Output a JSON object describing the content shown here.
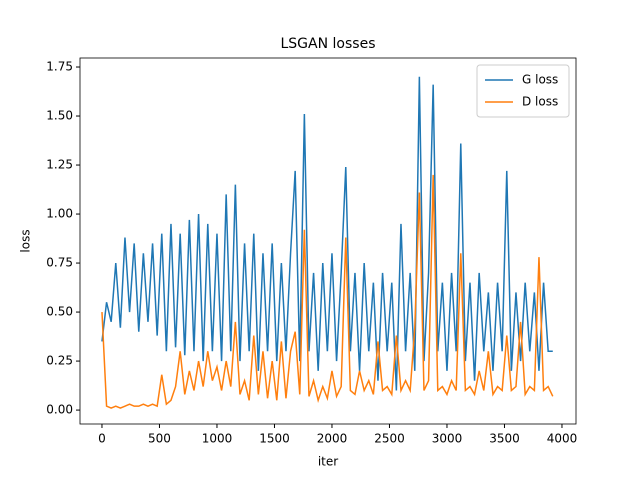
{
  "chart_data": {
    "type": "line",
    "title": "LSGAN losses",
    "x_label": "iter",
    "y_label": "loss",
    "x": [
      0,
      40,
      80,
      120,
      160,
      200,
      240,
      280,
      320,
      360,
      400,
      440,
      480,
      520,
      560,
      600,
      640,
      680,
      720,
      760,
      800,
      840,
      880,
      920,
      960,
      1000,
      1040,
      1080,
      1120,
      1160,
      1200,
      1240,
      1280,
      1320,
      1360,
      1400,
      1440,
      1480,
      1520,
      1560,
      1600,
      1640,
      1680,
      1720,
      1760,
      1800,
      1840,
      1880,
      1920,
      1960,
      2000,
      2040,
      2080,
      2120,
      2160,
      2200,
      2240,
      2280,
      2320,
      2360,
      2400,
      2440,
      2480,
      2520,
      2560,
      2600,
      2640,
      2680,
      2720,
      2760,
      2800,
      2840,
      2880,
      2920,
      2960,
      3000,
      3040,
      3080,
      3120,
      3160,
      3200,
      3240,
      3280,
      3320,
      3360,
      3400,
      3440,
      3480,
      3520,
      3560,
      3600,
      3640,
      3680,
      3720,
      3760,
      3800,
      3840,
      3880,
      3920
    ],
    "series": [
      {
        "name": "G loss",
        "color": "#1f77b4",
        "values": [
          0.35,
          0.55,
          0.45,
          0.75,
          0.42,
          0.88,
          0.5,
          0.85,
          0.4,
          0.8,
          0.45,
          0.85,
          0.38,
          0.9,
          0.3,
          0.95,
          0.32,
          0.9,
          0.28,
          0.97,
          0.3,
          1.0,
          0.25,
          0.95,
          0.3,
          0.9,
          0.25,
          1.1,
          0.3,
          1.15,
          0.25,
          0.85,
          0.3,
          0.9,
          0.2,
          0.8,
          0.3,
          0.85,
          0.25,
          0.75,
          0.3,
          0.8,
          1.22,
          0.25,
          1.51,
          0.3,
          0.7,
          0.2,
          0.75,
          0.3,
          0.8,
          0.25,
          0.7,
          1.24,
          0.3,
          0.7,
          0.2,
          0.75,
          0.3,
          0.65,
          0.15,
          0.7,
          0.3,
          0.65,
          0.1,
          0.95,
          0.3,
          0.7,
          0.2,
          1.7,
          0.25,
          0.7,
          1.66,
          0.3,
          0.65,
          0.2,
          0.7,
          0.3,
          1.36,
          0.25,
          0.65,
          0.15,
          0.7,
          0.3,
          0.6,
          0.2,
          0.65,
          0.3,
          1.22,
          0.2,
          0.6,
          0.25,
          0.65,
          0.3,
          0.6,
          0.2,
          0.65,
          0.3,
          0.3
        ]
      },
      {
        "name": "D loss",
        "color": "#ff7f0e",
        "values": [
          0.5,
          0.02,
          0.01,
          0.02,
          0.01,
          0.02,
          0.03,
          0.02,
          0.02,
          0.03,
          0.02,
          0.03,
          0.02,
          0.18,
          0.03,
          0.05,
          0.12,
          0.3,
          0.08,
          0.2,
          0.1,
          0.25,
          0.12,
          0.3,
          0.15,
          0.22,
          0.1,
          0.25,
          0.12,
          0.45,
          0.08,
          0.15,
          0.05,
          0.38,
          0.08,
          0.3,
          0.06,
          0.25,
          0.05,
          0.35,
          0.06,
          0.3,
          0.4,
          0.08,
          0.92,
          0.07,
          0.15,
          0.05,
          0.12,
          0.06,
          0.2,
          0.07,
          0.12,
          0.88,
          0.1,
          0.08,
          0.2,
          0.1,
          0.15,
          0.08,
          0.35,
          0.1,
          0.12,
          0.08,
          0.38,
          0.1,
          0.15,
          0.1,
          0.42,
          1.11,
          0.1,
          0.15,
          1.2,
          0.1,
          0.12,
          0.08,
          0.15,
          0.1,
          0.8,
          0.1,
          0.12,
          0.08,
          0.2,
          0.1,
          0.3,
          0.08,
          0.12,
          0.1,
          0.38,
          0.1,
          0.12,
          0.45,
          0.08,
          0.12,
          0.1,
          0.78,
          0.1,
          0.12,
          0.07
        ]
      }
    ],
    "xlim": [
      -191,
      4122
    ],
    "ylim": [
      -0.071,
      1.796
    ],
    "xticks": [
      0,
      500,
      1000,
      1500,
      2000,
      2500,
      3000,
      3500,
      4000
    ],
    "yticks": [
      {
        "value": 0,
        "label": "0.00"
      },
      {
        "value": 0.25,
        "label": "0.25"
      },
      {
        "value": 0.5,
        "label": "0.50"
      },
      {
        "value": 0.75,
        "label": "0.75"
      },
      {
        "value": 1,
        "label": "1.00"
      },
      {
        "value": 1.25,
        "label": "1.25"
      },
      {
        "value": 1.5,
        "label": "1.50"
      },
      {
        "value": 1.75,
        "label": "1.75"
      }
    ],
    "legend": "upper right"
  }
}
